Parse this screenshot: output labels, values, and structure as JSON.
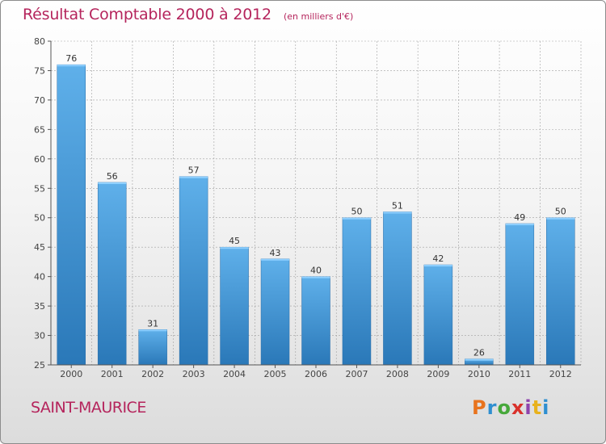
{
  "header": {
    "title": "Résultat Comptable 2000 à 2012",
    "subtitle": "(en milliers d'€)"
  },
  "footer": {
    "place": "SAINT-MAURICE",
    "brand": "Proxiti",
    "brand_colors": [
      "#e8731d",
      "#2f8fd0",
      "#46a83a",
      "#d9312b",
      "#8e44ad",
      "#e8b21d",
      "#2f8fd0"
    ]
  },
  "colors": {
    "bar_light": "#5fb0ea",
    "bar_dark": "#2a78b8",
    "accent": "#b5245c",
    "grid": "#a0a0a0"
  },
  "chart_data": {
    "type": "bar",
    "title": "Résultat Comptable 2000 à 2012",
    "subtitle": "(en milliers d'€)",
    "xlabel": "",
    "ylabel": "",
    "categories": [
      "2000",
      "2001",
      "2002",
      "2003",
      "2004",
      "2005",
      "2006",
      "2007",
      "2008",
      "2009",
      "2010",
      "2011",
      "2012"
    ],
    "values": [
      76,
      56,
      31,
      57,
      45,
      43,
      40,
      50,
      51,
      42,
      26,
      49,
      50
    ],
    "ylim": [
      25,
      80
    ],
    "yticks": [
      25,
      30,
      35,
      40,
      45,
      50,
      55,
      60,
      65,
      70,
      75,
      80
    ],
    "grid": true,
    "legend": "none"
  }
}
